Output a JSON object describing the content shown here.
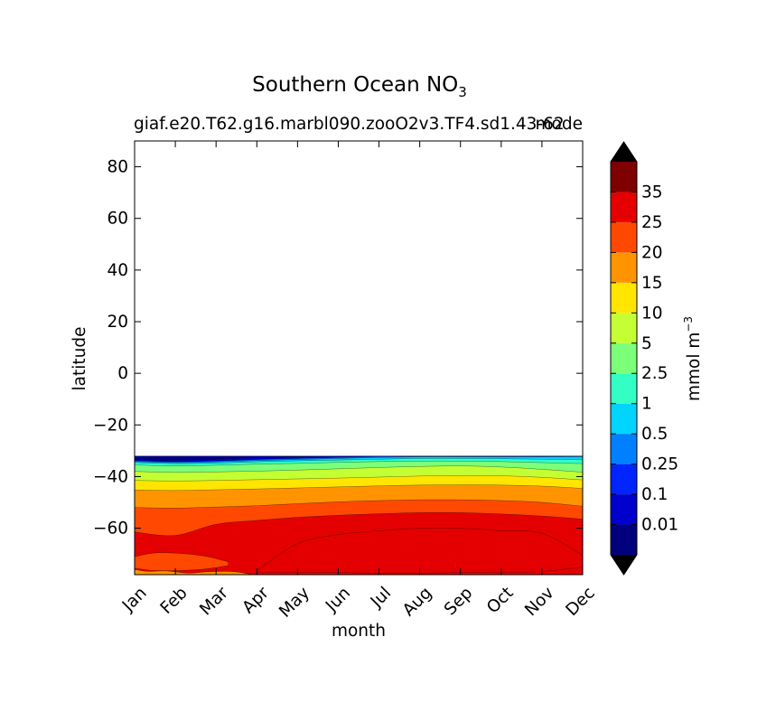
{
  "chart_data": {
    "type": "heatmap",
    "title": {
      "main": "Southern Ocean NO",
      "sub": "3"
    },
    "subtitle_left": "giaf.e20.T62.g16.marbl090.zooO2v3.TF4.sd1.43-62",
    "subtitle_right": "mode",
    "xlabel": "month",
    "ylabel": "latitude",
    "x_ticks": [
      "Jan",
      "Feb",
      "Mar",
      "Apr",
      "May",
      "Jun",
      "Jul",
      "Aug",
      "Sep",
      "Oct",
      "Nov",
      "Dec"
    ],
    "y_ticks": [
      80,
      60,
      40,
      20,
      0,
      -20,
      -40,
      -60
    ],
    "y_tick_labels": [
      "80",
      "60",
      "40",
      "20",
      "0",
      "−20",
      "−40",
      "−60"
    ],
    "ylim": [
      -78,
      90
    ],
    "data_lat_range": [
      -78,
      -32
    ],
    "colorbar": {
      "label_main": "mmol m",
      "label_exp": "−3",
      "levels": [
        0.01,
        0.1,
        0.25,
        0.5,
        1,
        2.5,
        5,
        10,
        15,
        20,
        25,
        35
      ],
      "tick_labels": [
        "0.01",
        "0.1",
        "0.25",
        "0.5",
        "1",
        "2.5",
        "5",
        "10",
        "15",
        "20",
        "25",
        "35"
      ],
      "colors": [
        "#00007f",
        "#0000cd",
        "#0025ff",
        "#0080ff",
        "#00d4ff",
        "#33ffc4",
        "#7cff79",
        "#c4ff33",
        "#ffe500",
        "#ff9400",
        "#ff4800",
        "#e40000",
        "#7f0000"
      ],
      "under_color": "#000000",
      "over_color": "#000000"
    },
    "contour_boundaries": {
      "months": [
        1,
        2,
        3,
        4,
        5,
        6,
        7,
        8,
        9,
        10,
        11,
        12
      ],
      "upper_edge": [
        -32,
        -32,
        -32,
        -32,
        -32,
        -32,
        -32,
        -32,
        -32,
        -32,
        -32,
        -32
      ],
      "lines": [
        {
          "level": 0.01,
          "lat": [
            -33.5,
            -33.7,
            -33.2,
            -32.7,
            -32.4,
            -32.2,
            -32.1,
            -32.1,
            -32.1,
            -32.1,
            -32.1,
            -32.1
          ]
        },
        {
          "level": 0.25,
          "lat": [
            -33.9,
            -34.3,
            -34.0,
            -33.4,
            -33.0,
            -32.6,
            -32.3,
            -32.2,
            -32.2,
            -32.2,
            -32.2,
            -32.2
          ]
        },
        {
          "level": 0.5,
          "lat": [
            -34.2,
            -34.6,
            -34.3,
            -33.8,
            -33.4,
            -33.0,
            -32.6,
            -32.4,
            -32.4,
            -32.4,
            -32.4,
            -32.3
          ]
        },
        {
          "level": 1,
          "lat": [
            -34.6,
            -35.0,
            -34.8,
            -34.3,
            -33.9,
            -33.6,
            -33.3,
            -33.0,
            -33.0,
            -33.1,
            -33.3,
            -33.5
          ]
        },
        {
          "level": 2.5,
          "lat": [
            -35.5,
            -35.9,
            -35.6,
            -35.2,
            -34.9,
            -34.5,
            -34.2,
            -34.0,
            -34.0,
            -34.2,
            -34.6,
            -35.0
          ]
        },
        {
          "level": 5,
          "lat": [
            -38.0,
            -38.4,
            -38.2,
            -37.9,
            -37.5,
            -37.0,
            -36.5,
            -36.1,
            -35.9,
            -36.3,
            -37.2,
            -38.3
          ]
        },
        {
          "level": 10,
          "lat": [
            -41.5,
            -41.7,
            -41.5,
            -41.2,
            -40.9,
            -40.6,
            -40.2,
            -39.8,
            -39.6,
            -39.7,
            -40.3,
            -41.3
          ]
        },
        {
          "level": 15,
          "lat": [
            -45.2,
            -45.4,
            -45.1,
            -44.8,
            -44.4,
            -44.0,
            -43.6,
            -43.3,
            -43.2,
            -43.3,
            -43.7,
            -44.6
          ]
        },
        {
          "level": 20,
          "lat": [
            -52.0,
            -52.2,
            -51.8,
            -51.3,
            -50.5,
            -49.8,
            -49.3,
            -49.0,
            -49.0,
            -49.3,
            -50.0,
            -51.5
          ]
        },
        {
          "level": 25,
          "lat": [
            -61.5,
            -62.8,
            -58.5,
            -57.0,
            -55.8,
            -55.0,
            -54.4,
            -54.0,
            -54.0,
            -54.5,
            -55.3,
            -56.5
          ]
        }
      ],
      "level_35_region": {
        "top_lat": [
          -78,
          -78,
          -78,
          -76.5,
          -66.0,
          -62.5,
          -61.0,
          -60.0,
          -60.0,
          -61.0,
          -62.0,
          -70.5
        ],
        "bottom_lat": [
          -78,
          -78,
          -78,
          -77.0,
          -77.0,
          -77.2,
          -77.4,
          -77.4,
          -77.2,
          -77.0,
          -76.8,
          -75.0
        ]
      },
      "level_20_pockets": [
        {
          "months": [
            1,
            1.6,
            2.6,
            3.3
          ],
          "top_lat": [
            -71.0,
            -69.5,
            -70.5,
            -73.0
          ],
          "bottom_lat": [
            -75.5,
            -76.5,
            -76.0,
            -74.5
          ]
        }
      ],
      "level_15_bottom": {
        "months": [
          1,
          1.3,
          1.8,
          2.3,
          2.8,
          3.4,
          3.9
        ],
        "lat": [
          -76.0,
          -76.7,
          -76.6,
          -77.4,
          -76.9,
          -76.8,
          -78.0
        ]
      }
    }
  }
}
